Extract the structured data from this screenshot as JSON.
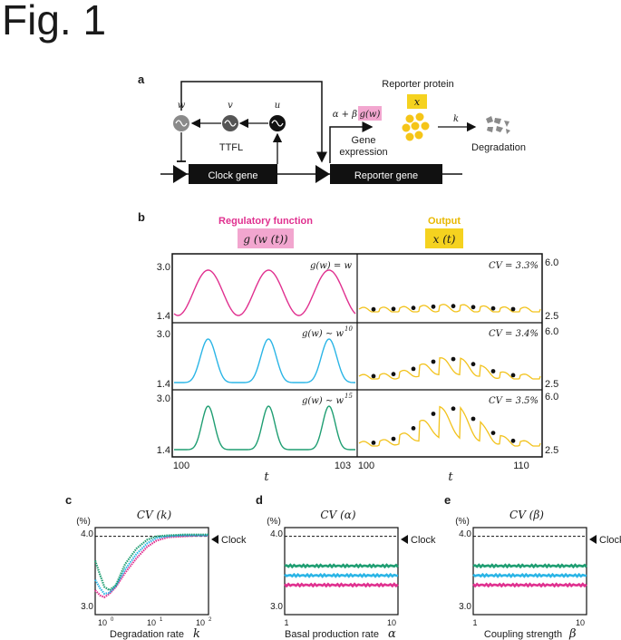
{
  "figure_title": "Fig. 1",
  "panel_a": {
    "letter": "a",
    "nodes": {
      "w": "w",
      "v": "v",
      "u": "u"
    },
    "loop_label": "TTFL",
    "clock_gene": "Clock gene",
    "reporter_gene": "Reporter gene",
    "production_rate_prefix": "α + β",
    "production_rate_fn": "g(w)",
    "gene_expression": [
      "Gene",
      "expression"
    ],
    "reporter_protein": "Reporter protein",
    "protein_symbol": "x",
    "degradation_rate": "k",
    "degradation": "Degradation",
    "colors": {
      "box": "#111111",
      "highlight_pink": "#f2a6cf",
      "highlight_yellow": "#f5d21f",
      "protein": "#f5c518",
      "degraded": "#8a8a8a"
    }
  },
  "panel_b": {
    "letter": "b",
    "left_header": "Regulatory function",
    "left_symbol": "g (w (t))",
    "right_header": "Output",
    "right_symbol": "x (t)",
    "left_x_ticks": [
      "100",
      "103"
    ],
    "right_x_ticks": [
      "100",
      "110"
    ],
    "x_axis_label": "t",
    "rows": [
      {
        "left_label": "g(w) = w",
        "left_exp": "",
        "cv": "CV = 3.3%",
        "left_y": [
          "3.0",
          "1.4"
        ],
        "right_y": [
          "6.0",
          "2.5"
        ],
        "color": "#e0308f"
      },
      {
        "left_label": "g(w) ∼ w",
        "left_exp": "10",
        "cv": "CV = 3.4%",
        "left_y": [
          "3.0",
          "1.4"
        ],
        "right_y": [
          "6.0",
          "2.5"
        ],
        "color": "#2bb5e6"
      },
      {
        "left_label": "g(w) ∼ w",
        "left_exp": "15",
        "cv": "CV = 3.5%",
        "left_y": [
          "3.0",
          "1.4"
        ],
        "right_y": [
          "6.0",
          "2.5"
        ],
        "color": "#1f9e72"
      }
    ],
    "output_color": "#f2c21b"
  },
  "panel_c": {
    "letter": "c",
    "title": "CV (k)",
    "unit": "(%)",
    "y_ticks": [
      "4.0",
      "3.0"
    ],
    "x_ticks": [
      "10",
      "10",
      "10"
    ],
    "x_tick_exps": [
      "0",
      "1",
      "2"
    ],
    "x_label": "Degradation rate",
    "x_symbol": "k",
    "clock_label": "Clock"
  },
  "panel_d": {
    "letter": "d",
    "title": "CV (α)",
    "unit": "(%)",
    "y_ticks": [
      "4.0",
      "3.0"
    ],
    "x_ticks": [
      "1",
      "10"
    ],
    "x_label": "Basal production rate",
    "x_symbol": "α",
    "clock_label": "Clock"
  },
  "panel_e": {
    "letter": "e",
    "title": "CV (β)",
    "unit": "(%)",
    "y_ticks": [
      "4.0",
      "3.0"
    ],
    "x_ticks": [
      "1",
      "10"
    ],
    "x_label": "Coupling strength",
    "x_symbol": "β",
    "clock_label": "Clock"
  },
  "chart_data": [
    {
      "type": "line",
      "title": "CV (k)",
      "xlabel": "Degradation rate k",
      "ylabel": "(%)",
      "x_scale": "log",
      "xlim": [
        0.8,
        120
      ],
      "ylim": [
        3.0,
        4.0
      ],
      "reference": {
        "name": "Clock",
        "value": 3.9
      },
      "series": [
        {
          "color": "#e0308f",
          "x": [
            0.8,
            1,
            1.2,
            1.5,
            2,
            3,
            5,
            8,
            12,
            20,
            40,
            80,
            120
          ],
          "values": [
            3.28,
            3.22,
            3.2,
            3.24,
            3.32,
            3.48,
            3.65,
            3.78,
            3.85,
            3.89,
            3.9,
            3.91,
            3.91
          ]
        },
        {
          "color": "#2bb5e6",
          "x": [
            0.8,
            1,
            1.2,
            1.5,
            2,
            3,
            5,
            8,
            12,
            20,
            40,
            80,
            120
          ],
          "values": [
            3.4,
            3.3,
            3.24,
            3.25,
            3.33,
            3.52,
            3.7,
            3.82,
            3.88,
            3.9,
            3.91,
            3.91,
            3.91
          ]
        },
        {
          "color": "#1f9e72",
          "x": [
            0.8,
            1,
            1.2,
            1.5,
            2,
            3,
            5,
            8,
            12,
            20,
            40,
            80,
            120
          ],
          "values": [
            3.62,
            3.45,
            3.32,
            3.28,
            3.34,
            3.58,
            3.76,
            3.86,
            3.9,
            3.91,
            3.92,
            3.92,
            3.92
          ]
        }
      ]
    },
    {
      "type": "line",
      "title": "CV (α)",
      "xlabel": "Basal production rate α",
      "ylabel": "(%)",
      "xlim": [
        1,
        10
      ],
      "ylim": [
        3.0,
        4.0
      ],
      "reference": {
        "name": "Clock",
        "value": 3.9
      },
      "series": [
        {
          "color": "#1f9e72",
          "x": [
            1,
            10
          ],
          "values": [
            3.56,
            3.56
          ]
        },
        {
          "color": "#2bb5e6",
          "x": [
            1,
            10
          ],
          "values": [
            3.45,
            3.45
          ]
        },
        {
          "color": "#e0308f",
          "x": [
            1,
            10
          ],
          "values": [
            3.34,
            3.34
          ]
        }
      ]
    },
    {
      "type": "line",
      "title": "CV (β)",
      "xlabel": "Coupling strength β",
      "ylabel": "(%)",
      "xlim": [
        1,
        10
      ],
      "ylim": [
        3.0,
        4.0
      ],
      "reference": {
        "name": "Clock",
        "value": 3.9
      },
      "series": [
        {
          "color": "#1f9e72",
          "x": [
            1,
            10
          ],
          "values": [
            3.56,
            3.56
          ]
        },
        {
          "color": "#2bb5e6",
          "x": [
            1,
            10
          ],
          "values": [
            3.45,
            3.45
          ]
        },
        {
          "color": "#e0308f",
          "x": [
            1,
            10
          ],
          "values": [
            3.34,
            3.34
          ]
        }
      ]
    }
  ]
}
